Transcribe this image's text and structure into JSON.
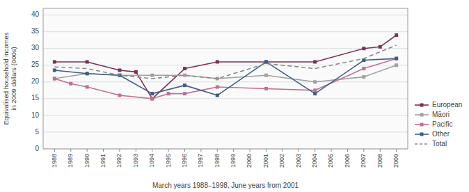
{
  "chart_data": {
    "type": "line",
    "xlabel": "March years 1988–1998, June years from 2001",
    "ylabel": "Equivalised household incomes\nin 2009 dollars (000s)",
    "xlim": [
      1987.3,
      2009.7
    ],
    "xticks": [
      1988,
      1989,
      1990,
      1991,
      1992,
      1993,
      1994,
      1995,
      1996,
      1997,
      1998,
      1999,
      2000,
      2001,
      2002,
      2003,
      2004,
      2005,
      2006,
      2007,
      2008,
      2009
    ],
    "ylim": [
      0,
      42
    ],
    "yticks": [
      0,
      5,
      10,
      15,
      20,
      25,
      30,
      35,
      40
    ],
    "grid": true,
    "legend": "lower right",
    "series": [
      {
        "name": "European",
        "color": "#7b3055",
        "marker": "square",
        "line_style": "solid",
        "x": [
          1988,
          1990,
          1992,
          1993,
          1994,
          1996,
          1998,
          2001,
          2004,
          2007,
          2008,
          2009
        ],
        "values": [
          26,
          26,
          23.5,
          23,
          15.0,
          24,
          26,
          26,
          26,
          30,
          30.5,
          34
        ]
      },
      {
        "name": "Māori",
        "color": "#a0a0a0",
        "marker": "square",
        "line_style": "solid",
        "x": [
          1988,
          1990,
          1992,
          1994,
          1996,
          1998,
          2001,
          2004,
          2007,
          2009
        ],
        "values": [
          21,
          22.5,
          22,
          22,
          22,
          21,
          22,
          20,
          21.5,
          25
        ]
      },
      {
        "name": "Pacific",
        "color": "#c07090",
        "marker": "square",
        "line_style": "solid",
        "x": [
          1988,
          1989,
          1990,
          1992,
          1994,
          1995,
          1996,
          1998,
          2001,
          2004,
          2007,
          2009
        ],
        "values": [
          21,
          19.5,
          18.5,
          16,
          15.0,
          16.5,
          16.5,
          18.5,
          18,
          17.5,
          24,
          27
        ]
      },
      {
        "name": "Other",
        "color": "#3a5f8a",
        "marker": "square",
        "line_style": "solid",
        "x": [
          1988,
          1990,
          1992,
          1994,
          1996,
          1998,
          2001,
          2004,
          2007,
          2009
        ],
        "values": [
          23.5,
          22.5,
          22,
          16.5,
          19,
          16,
          26,
          16.5,
          26.5,
          27
        ]
      },
      {
        "name": "Total",
        "color": "#888888",
        "marker": "none",
        "line_style": "dashed",
        "x": [
          1988,
          1990,
          1992,
          1993,
          1994,
          1996,
          1998,
          2001,
          2004,
          2007,
          2009
        ],
        "values": [
          24.5,
          24,
          22,
          21.5,
          21,
          22,
          21,
          25.5,
          24,
          27,
          31
        ]
      }
    ]
  }
}
